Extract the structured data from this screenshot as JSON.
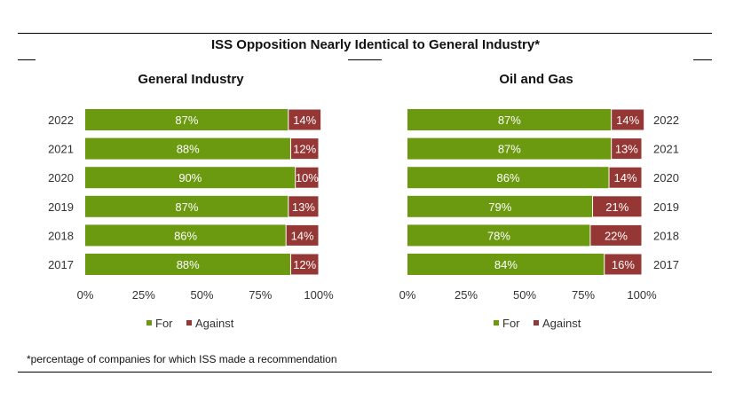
{
  "title": "ISS Opposition Nearly Identical to General Industry*",
  "footnote": "*percentage of companies for which ISS made a recommendation",
  "colors": {
    "for": "#6b9a10",
    "against": "#953734",
    "text": "#333333"
  },
  "chart_data": [
    {
      "type": "bar",
      "orientation": "horizontal",
      "stacked": true,
      "title": "General Industry",
      "categories": [
        "2022",
        "2021",
        "2020",
        "2019",
        "2018",
        "2017"
      ],
      "category_axis_side": "left",
      "series": [
        {
          "name": "For",
          "values": [
            87,
            88,
            90,
            87,
            86,
            88
          ],
          "labels": [
            "87%",
            "88%",
            "90%",
            "87%",
            "86%",
            "88%"
          ]
        },
        {
          "name": "Against",
          "values": [
            14,
            12,
            10,
            13,
            14,
            12
          ],
          "labels": [
            "14%",
            "12%",
            "10%",
            "13%",
            "14%",
            "12%"
          ]
        }
      ],
      "xlim": [
        0,
        100
      ],
      "xticks": [
        "0%",
        "25%",
        "50%",
        "75%",
        "100%"
      ],
      "legend": "bottom",
      "grid": false
    },
    {
      "type": "bar",
      "orientation": "horizontal",
      "stacked": true,
      "title": "Oil and Gas",
      "categories": [
        "2022",
        "2021",
        "2020",
        "2019",
        "2018",
        "2017"
      ],
      "category_axis_side": "right",
      "series": [
        {
          "name": "For",
          "values": [
            87,
            87,
            86,
            79,
            78,
            84
          ],
          "labels": [
            "87%",
            "87%",
            "86%",
            "79%",
            "78%",
            "84%"
          ]
        },
        {
          "name": "Against",
          "values": [
            14,
            13,
            14,
            21,
            22,
            16
          ],
          "labels": [
            "14%",
            "13%",
            "14%",
            "21%",
            "22%",
            "16%"
          ]
        }
      ],
      "xlim": [
        0,
        100
      ],
      "xticks": [
        "0%",
        "25%",
        "50%",
        "75%",
        "100%"
      ],
      "legend": "bottom",
      "grid": false
    }
  ]
}
